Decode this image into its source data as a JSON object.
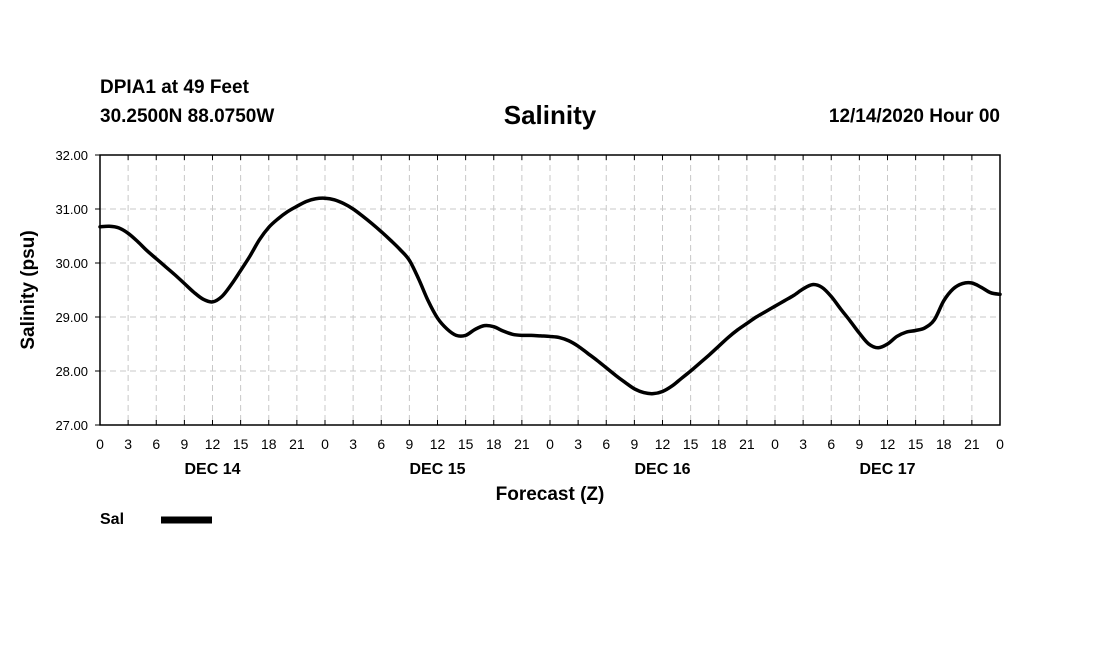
{
  "header": {
    "station": "DPIA1 at 49 Feet",
    "coordinates": "30.2500N 88.0750W",
    "title": "Salinity",
    "datetime": "12/14/2020 Hour 00"
  },
  "colors": {
    "line": "#000000",
    "grid": "#c8c8c8",
    "background": "#ffffff"
  },
  "chart_data": {
    "type": "line",
    "title": "Salinity",
    "xlabel": "Forecast (Z)",
    "ylabel": "Salinity (psu)",
    "xlim": [
      0,
      96
    ],
    "ylim": [
      27.0,
      32.0
    ],
    "y_ticks": [
      "27.00",
      "28.00",
      "29.00",
      "30.00",
      "31.00",
      "32.00"
    ],
    "y_tick_values": [
      27.0,
      28.0,
      29.0,
      30.0,
      31.0,
      32.0
    ],
    "x_tick_hours": [
      0,
      3,
      6,
      9,
      12,
      15,
      18,
      21,
      24,
      27,
      30,
      33,
      36,
      39,
      42,
      45,
      48,
      51,
      54,
      57,
      60,
      63,
      66,
      69,
      72,
      75,
      78,
      81,
      84,
      87,
      90,
      93,
      96
    ],
    "x_tick_labels": [
      "0",
      "3",
      "6",
      "9",
      "12",
      "15",
      "18",
      "21",
      "0",
      "3",
      "6",
      "9",
      "12",
      "15",
      "18",
      "21",
      "0",
      "3",
      "6",
      "9",
      "12",
      "15",
      "18",
      "21",
      "0",
      "3",
      "6",
      "9",
      "12",
      "15",
      "18",
      "21",
      "0"
    ],
    "day_labels": [
      {
        "label": "DEC 14",
        "hour": 12
      },
      {
        "label": "DEC 15",
        "hour": 36
      },
      {
        "label": "DEC 16",
        "hour": 60
      },
      {
        "label": "DEC 17",
        "hour": 84
      }
    ],
    "grid": true,
    "legend_position": "bottom-left",
    "series": [
      {
        "name": "Sal",
        "x": [
          0,
          1,
          2,
          3,
          4,
          5,
          6,
          7,
          8,
          9,
          10,
          11,
          12,
          13,
          14,
          15,
          16,
          17,
          18,
          19,
          20,
          21,
          22,
          23,
          24,
          25,
          26,
          27,
          28,
          29,
          30,
          31,
          32,
          33,
          34,
          35,
          36,
          37,
          38,
          39,
          40,
          41,
          42,
          43,
          44,
          45,
          46,
          47,
          48,
          49,
          50,
          51,
          52,
          53,
          54,
          55,
          56,
          57,
          58,
          59,
          60,
          61,
          62,
          63,
          64,
          65,
          66,
          67,
          68,
          69,
          70,
          71,
          72,
          73,
          74,
          75,
          76,
          77,
          78,
          79,
          80,
          81,
          82,
          83,
          84,
          85,
          86,
          87,
          88,
          89,
          90,
          91,
          92,
          93,
          94,
          95,
          96
        ],
        "values": [
          30.67,
          30.68,
          30.65,
          30.55,
          30.4,
          30.23,
          30.08,
          29.93,
          29.78,
          29.62,
          29.46,
          29.33,
          29.28,
          29.38,
          29.6,
          29.86,
          30.13,
          30.43,
          30.66,
          30.82,
          30.95,
          31.05,
          31.14,
          31.19,
          31.2,
          31.17,
          31.1,
          31.0,
          30.87,
          30.73,
          30.58,
          30.42,
          30.25,
          30.05,
          29.7,
          29.3,
          28.98,
          28.78,
          28.66,
          28.66,
          28.77,
          28.84,
          28.82,
          28.74,
          28.68,
          28.66,
          28.66,
          28.65,
          28.64,
          28.62,
          28.56,
          28.46,
          28.33,
          28.2,
          28.06,
          27.92,
          27.79,
          27.67,
          27.6,
          27.58,
          27.62,
          27.72,
          27.86,
          28.0,
          28.15,
          28.3,
          28.46,
          28.62,
          28.76,
          28.88,
          29.0,
          29.1,
          29.2,
          29.3,
          29.4,
          29.52,
          29.6,
          29.55,
          29.38,
          29.15,
          28.93,
          28.7,
          28.5,
          28.43,
          28.5,
          28.64,
          28.72,
          28.75,
          28.8,
          28.95,
          29.3,
          29.52,
          29.62,
          29.63,
          29.55,
          29.45,
          29.42
        ]
      }
    ]
  },
  "legend": {
    "label": "Sal"
  }
}
